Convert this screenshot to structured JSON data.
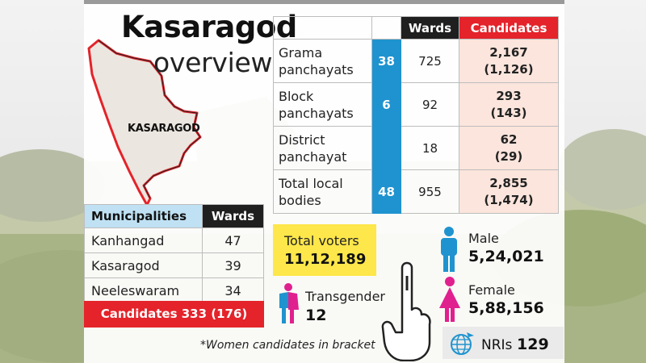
{
  "title": "Kasaragod",
  "subtitle": "overview",
  "map_label": "KASARAGOD",
  "local_bodies": {
    "headers": {
      "wards": "Wards",
      "candidates": "Candidates"
    },
    "rows": [
      {
        "line1": "Grama",
        "line2": "panchayats",
        "count": "38",
        "wards": "725",
        "cand1": "2,167",
        "cand2": "(1,126)"
      },
      {
        "line1": "Block",
        "line2": "panchayats",
        "count": "6",
        "wards": "92",
        "cand1": "293",
        "cand2": "(143)"
      },
      {
        "line1": "District",
        "line2": "panchayat",
        "count": "",
        "wards": "18",
        "cand1": "62",
        "cand2": "(29)"
      },
      {
        "line1": "Total local",
        "line2": "bodies",
        "count": "48",
        "wards": "955",
        "cand1": "2,855",
        "cand2": "(1,474)"
      }
    ]
  },
  "municipalities": {
    "header": "Municipalities",
    "wards_header": "Wards",
    "rows": [
      {
        "name": "Kanhangad",
        "wards": "47"
      },
      {
        "name": "Kasaragod",
        "wards": "39"
      },
      {
        "name": "Neeleswaram",
        "wards": "34"
      }
    ],
    "candidates": "Candidates 333 (176)"
  },
  "voters": {
    "total_label": "Total voters",
    "total_value": "11,12,189",
    "male_label": "Male",
    "male_value": "5,24,021",
    "female_label": "Female",
    "female_value": "5,88,156",
    "transgender_label": "Transgender",
    "transgender_value": "12",
    "nri_label": "NRIs",
    "nri_value": "129"
  },
  "note": "*Women candidates in bracket",
  "colors": {
    "accent_blue": "#1f93cf",
    "accent_red": "#e4232a",
    "female_pink": "#e0208f",
    "male_blue": "#1f93cf",
    "voters_yellow": "#fde74a"
  },
  "icons": [
    "male-icon",
    "female-icon",
    "transgender-icon",
    "inked-finger-icon",
    "globe-plane-icon"
  ]
}
